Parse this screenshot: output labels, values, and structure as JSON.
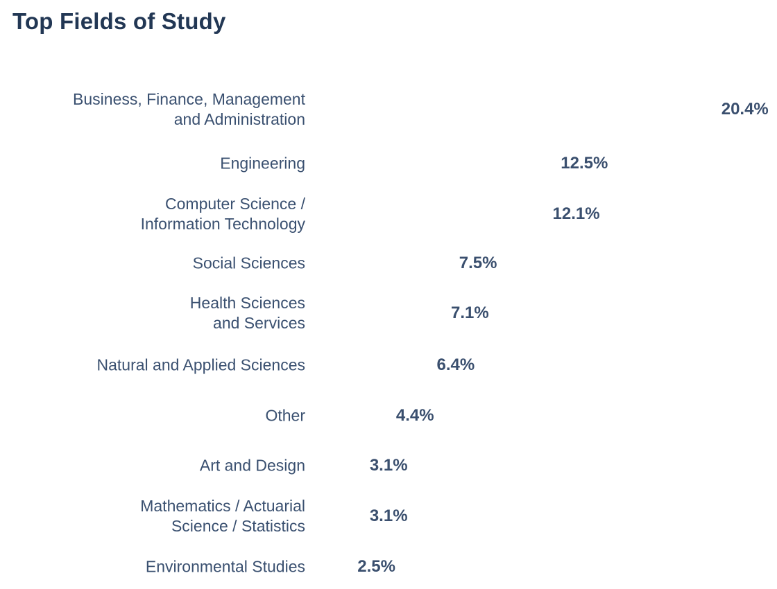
{
  "chart_data": {
    "type": "bar",
    "title": "Top Fields of Study",
    "categories": [
      "Business, Finance, Management\nand Administration",
      "Engineering",
      "Computer Science /\nInformation Technology",
      "Social Sciences",
      "Health Sciences\nand Services",
      "Natural and Applied Sciences",
      "Other",
      "Art and Design",
      "Mathematics / Actuarial\nScience / Statistics",
      "Environmental Studies"
    ],
    "values": [
      20.4,
      12.5,
      12.1,
      7.5,
      7.1,
      6.4,
      4.4,
      3.1,
      3.1,
      2.5
    ],
    "value_labels": [
      "20.4%",
      "12.5%",
      "12.1%",
      "7.5%",
      "7.1%",
      "6.4%",
      "4.4%",
      "3.1%",
      "3.1%",
      "2.5%"
    ],
    "orientation": "horizontal",
    "xlabel": "",
    "ylabel": "",
    "xlim": [
      0,
      22
    ]
  }
}
